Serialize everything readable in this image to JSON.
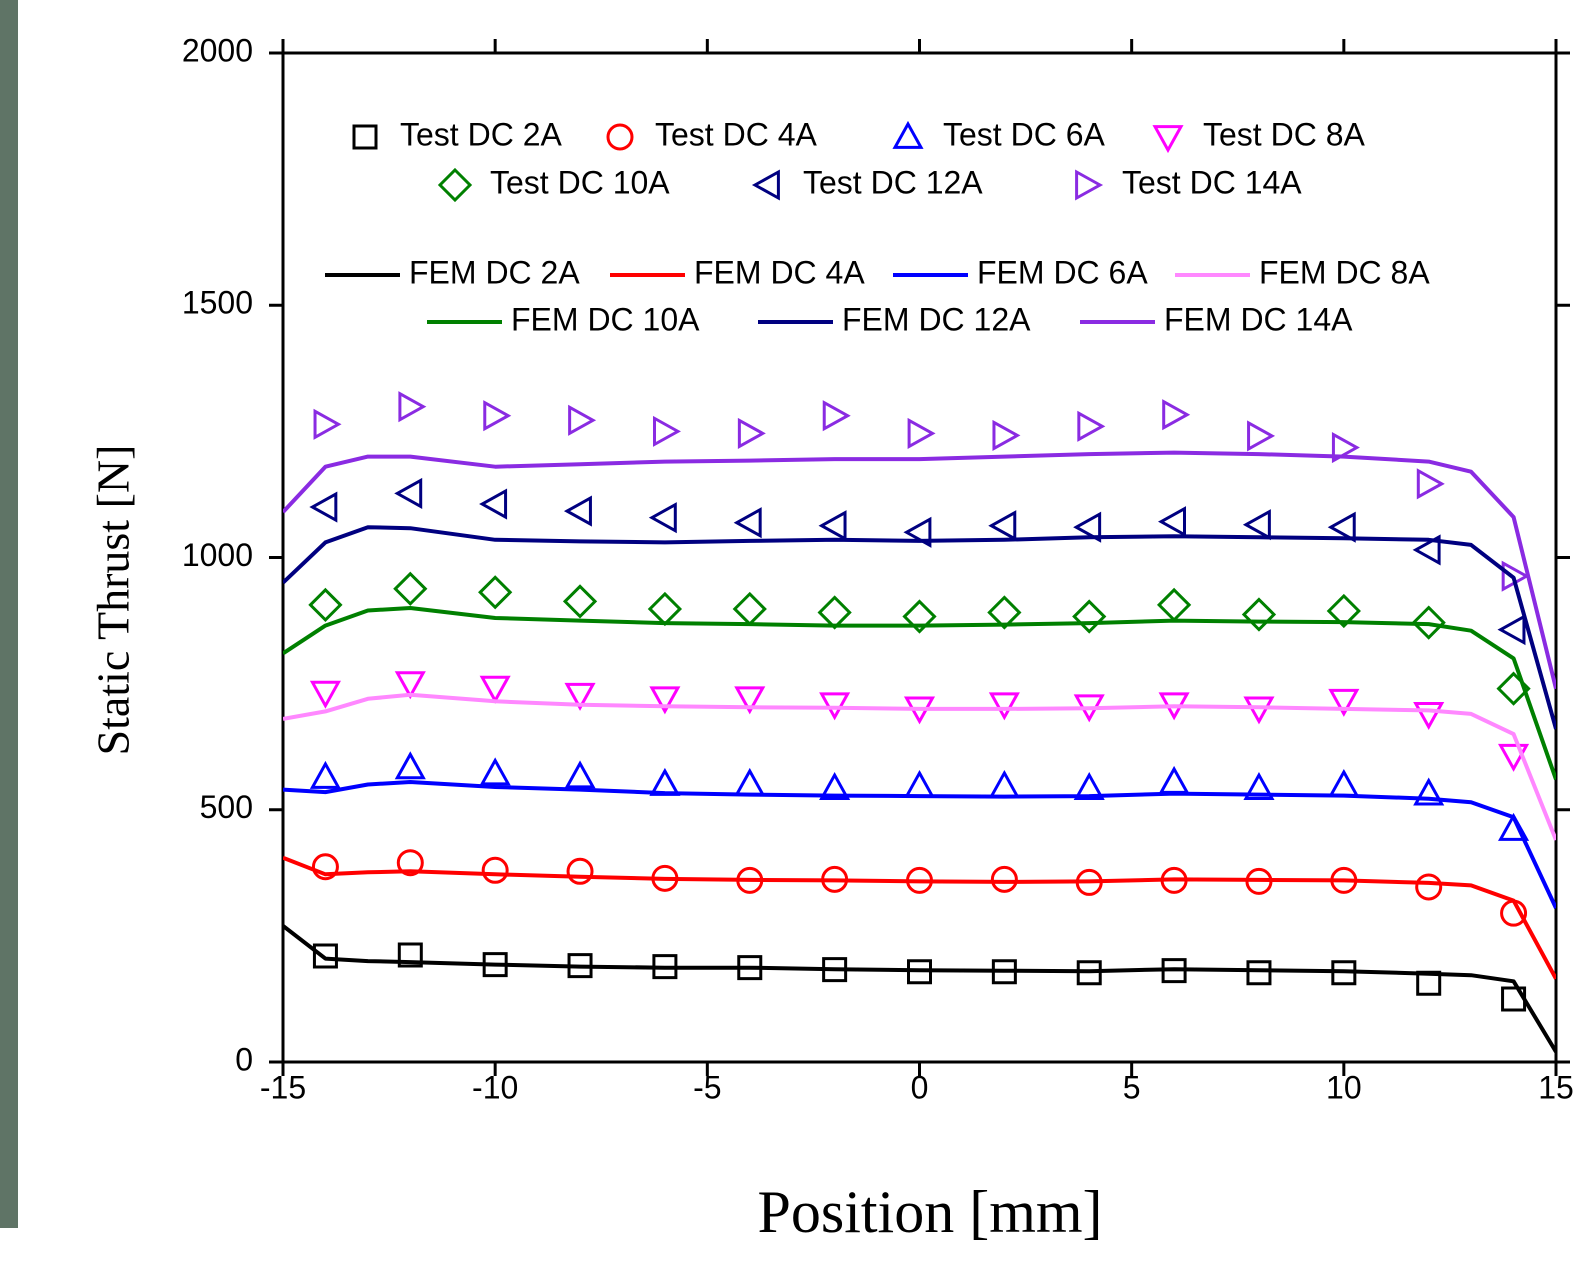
{
  "chart_data": {
    "type": "line",
    "xlabel": "Position [mm]",
    "ylabel": "Static Thrust [N]",
    "xlim": [
      -15,
      15
    ],
    "ylim": [
      0,
      2000
    ],
    "xticks": [
      -15,
      -10,
      -5,
      0,
      5,
      10,
      15
    ],
    "yticks": [
      0,
      500,
      1000,
      1500,
      2000
    ],
    "series": [
      {
        "name": "Test DC 2A",
        "color": "#000000",
        "marker": "square",
        "x": [
          -14,
          -12,
          -10,
          -8,
          -6,
          -4,
          -2,
          0,
          2,
          4,
          6,
          8,
          10,
          12,
          14
        ],
        "values": [
          210,
          212,
          193,
          191,
          189,
          187,
          183,
          179,
          179,
          177,
          181,
          177,
          177,
          156,
          125
        ]
      },
      {
        "name": "Test DC 4A",
        "color": "#ff0000",
        "marker": "circle",
        "x": [
          -14,
          -12,
          -10,
          -8,
          -6,
          -4,
          -2,
          0,
          2,
          4,
          6,
          8,
          10,
          12,
          14
        ],
        "values": [
          387,
          395,
          380,
          378,
          364,
          360,
          362,
          360,
          362,
          356,
          360,
          358,
          360,
          347,
          295
        ]
      },
      {
        "name": "Test DC 6A",
        "color": "#0000ff",
        "marker": "triangle-up",
        "x": [
          -14,
          -12,
          -10,
          -8,
          -6,
          -4,
          -2,
          0,
          2,
          4,
          6,
          8,
          10,
          12,
          14
        ],
        "values": [
          565,
          584,
          572,
          566,
          551,
          551,
          543,
          547,
          547,
          543,
          555,
          543,
          549,
          532,
          462
        ]
      },
      {
        "name": "Test DC 8A",
        "color": "#ff00ff",
        "marker": "triangle-down",
        "x": [
          -14,
          -12,
          -10,
          -8,
          -6,
          -4,
          -2,
          0,
          2,
          4,
          6,
          8,
          10,
          12,
          14
        ],
        "values": [
          732,
          751,
          742,
          728,
          721,
          721,
          709,
          701,
          709,
          705,
          709,
          701,
          716,
          690,
          607
        ]
      },
      {
        "name": "Test DC 10A",
        "color": "#008000",
        "marker": "diamond",
        "x": [
          -14,
          -12,
          -10,
          -8,
          -6,
          -4,
          -2,
          0,
          2,
          4,
          6,
          8,
          10,
          12,
          14
        ],
        "values": [
          906,
          938,
          931,
          913,
          898,
          898,
          891,
          883,
          891,
          883,
          906,
          887,
          894,
          871,
          740
        ]
      },
      {
        "name": "Test DC 12A",
        "color": "#000080",
        "marker": "triangle-left",
        "x": [
          -14,
          -12,
          -10,
          -8,
          -6,
          -4,
          -2,
          0,
          2,
          4,
          6,
          8,
          10,
          12,
          14
        ],
        "values": [
          1100,
          1127,
          1106,
          1092,
          1079,
          1069,
          1063,
          1050,
          1063,
          1060,
          1071,
          1065,
          1060,
          1015,
          857
        ]
      },
      {
        "name": "Test DC 14A",
        "color": "#8a2be2",
        "marker": "triangle-right",
        "x": [
          -14,
          -12,
          -10,
          -8,
          -6,
          -4,
          -2,
          0,
          2,
          4,
          6,
          8,
          10,
          12,
          14
        ],
        "values": [
          1264,
          1299,
          1281,
          1272,
          1250,
          1246,
          1281,
          1246,
          1242,
          1260,
          1283,
          1241,
          1218,
          1146,
          963
        ]
      },
      {
        "name": "FEM DC 2A",
        "color": "#000000",
        "x": [
          -15,
          -14,
          -13,
          -12,
          -10,
          -8,
          -6,
          -4,
          -2,
          0,
          2,
          4,
          6,
          8,
          10,
          12,
          13,
          14,
          15
        ],
        "values": [
          270,
          205,
          200,
          198,
          193,
          189,
          187,
          187,
          184,
          182,
          181,
          180,
          184,
          182,
          180,
          175,
          172,
          160,
          20
        ]
      },
      {
        "name": "FEM DC 4A",
        "color": "#ff0000",
        "x": [
          -15,
          -14,
          -13,
          -12,
          -10,
          -8,
          -6,
          -4,
          -2,
          0,
          2,
          4,
          6,
          8,
          10,
          12,
          13,
          14,
          15
        ],
        "values": [
          405,
          372,
          376,
          378,
          372,
          367,
          363,
          361,
          360,
          358,
          357,
          358,
          362,
          361,
          360,
          355,
          350,
          320,
          165
        ]
      },
      {
        "name": "FEM DC 6A",
        "color": "#0000ff",
        "x": [
          -15,
          -14,
          -13,
          -12,
          -10,
          -8,
          -6,
          -4,
          -2,
          0,
          2,
          4,
          6,
          8,
          10,
          12,
          13,
          14,
          15
        ],
        "values": [
          540,
          535,
          550,
          555,
          545,
          540,
          533,
          530,
          528,
          527,
          526,
          527,
          532,
          530,
          528,
          522,
          515,
          485,
          305
        ]
      },
      {
        "name": "FEM DC 8A",
        "color": "#ff88ff",
        "x": [
          -15,
          -14,
          -13,
          -12,
          -10,
          -8,
          -6,
          -4,
          -2,
          0,
          2,
          4,
          6,
          8,
          10,
          12,
          13,
          14,
          15
        ],
        "values": [
          680,
          695,
          720,
          728,
          715,
          708,
          705,
          703,
          702,
          700,
          700,
          701,
          705,
          703,
          700,
          697,
          690,
          650,
          440
        ]
      },
      {
        "name": "FEM DC 10A",
        "color": "#008000",
        "x": [
          -15,
          -14,
          -13,
          -12,
          -10,
          -8,
          -6,
          -4,
          -2,
          0,
          2,
          4,
          6,
          8,
          10,
          12,
          13,
          14,
          15
        ],
        "values": [
          810,
          865,
          895,
          900,
          880,
          875,
          870,
          868,
          865,
          865,
          867,
          870,
          875,
          873,
          872,
          868,
          855,
          800,
          560
        ]
      },
      {
        "name": "FEM DC 12A",
        "color": "#000080",
        "x": [
          -15,
          -14,
          -13,
          -12,
          -10,
          -8,
          -6,
          -4,
          -2,
          0,
          2,
          4,
          6,
          8,
          10,
          12,
          13,
          14,
          15
        ],
        "values": [
          950,
          1030,
          1060,
          1058,
          1035,
          1032,
          1030,
          1033,
          1035,
          1033,
          1035,
          1040,
          1042,
          1040,
          1038,
          1035,
          1025,
          960,
          660
        ]
      },
      {
        "name": "FEM DC 14A",
        "color": "#8a2be2",
        "x": [
          -15,
          -14,
          -13,
          -12,
          -10,
          -8,
          -6,
          -4,
          -2,
          0,
          2,
          4,
          6,
          8,
          10,
          12,
          13,
          14,
          15
        ],
        "values": [
          1090,
          1180,
          1200,
          1200,
          1180,
          1185,
          1190,
          1192,
          1195,
          1195,
          1200,
          1205,
          1208,
          1205,
          1200,
          1190,
          1170,
          1080,
          740
        ]
      }
    ]
  }
}
